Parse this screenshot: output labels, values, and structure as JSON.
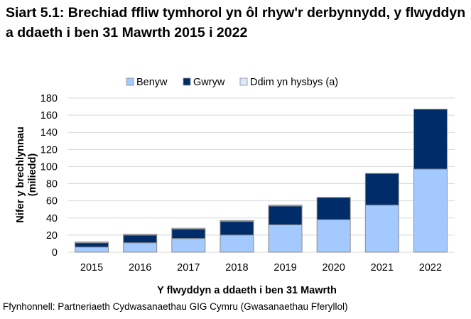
{
  "chart_data": {
    "type": "bar",
    "stacked": true,
    "title": "Siart 5.1: Brechiad ffliw tymhorol yn ôl rhyw'r derbynnydd, y flwyddyn a ddaeth i ben 31 Mawrth 2015 i 2022",
    "xlabel": "Y flwyddyn a ddaeth i ben 31 Mawrth",
    "ylabel": "Nifer y brechlynnau (miliedd)",
    "ylim": [
      0,
      180
    ],
    "yticks": [
      0,
      20,
      40,
      60,
      80,
      100,
      120,
      140,
      160,
      180
    ],
    "grid": true,
    "legend": "top",
    "categories": [
      "2015",
      "2016",
      "2017",
      "2018",
      "2019",
      "2020",
      "2021",
      "2022"
    ],
    "series": [
      {
        "name": "Benyw",
        "color": "#a3c9ff",
        "values": [
          6,
          11,
          16,
          20,
          32,
          38,
          55,
          97
        ]
      },
      {
        "name": "Gwryw",
        "color": "#002d6a",
        "values": [
          5,
          9,
          11,
          16,
          22,
          26,
          37,
          70
        ]
      },
      {
        "name": "Ddim yn hysbys (a)",
        "color": "#dce9ff",
        "values": [
          1,
          1,
          1,
          1,
          1,
          0,
          0,
          0
        ]
      }
    ]
  },
  "source": "Ffynhonnell: Partneriaeth Cydwasanaethau GIG Cymru (Gwasanaethau Fferyllol)"
}
